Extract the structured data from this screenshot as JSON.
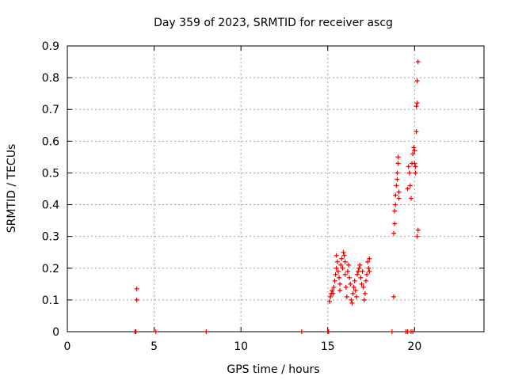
{
  "chart_data": {
    "type": "scatter",
    "title": "Day 359 of 2023, SRMTID for receiver ascg",
    "xlabel": "GPS time / hours",
    "ylabel": "SRMTID / TECUs",
    "xlim": [
      0,
      24
    ],
    "ylim": [
      0,
      0.9
    ],
    "xticks": [
      0,
      5,
      10,
      15,
      20
    ],
    "xtick_labels": [
      "0",
      "5",
      "10",
      "15",
      "20"
    ],
    "yticks": [
      0,
      0.1,
      0.2,
      0.3,
      0.4,
      0.5,
      0.6,
      0.7,
      0.8,
      0.9
    ],
    "ytick_labels": [
      "0",
      "0.1",
      "0.2",
      "0.3",
      "0.4",
      "0.5",
      "0.6",
      "0.7",
      "0.8",
      "0.9"
    ],
    "grid": true,
    "marker": "+",
    "color": "#e00000",
    "series": [
      {
        "name": "SRMTID",
        "points": [
          [
            3.9,
            0
          ],
          [
            3.95,
            0
          ],
          [
            4.0,
            0.135
          ],
          [
            4.0,
            0.1
          ],
          [
            5.1,
            0
          ],
          [
            8.0,
            0
          ],
          [
            13.5,
            0
          ],
          [
            15.0,
            0
          ],
          [
            15.05,
            0
          ],
          [
            15.1,
            0.095
          ],
          [
            15.15,
            0.11
          ],
          [
            15.2,
            0.12
          ],
          [
            15.25,
            0.13
          ],
          [
            15.3,
            0.12
          ],
          [
            15.35,
            0.14
          ],
          [
            15.4,
            0.16
          ],
          [
            15.45,
            0.18
          ],
          [
            15.5,
            0.2
          ],
          [
            15.5,
            0.24
          ],
          [
            15.55,
            0.22
          ],
          [
            15.6,
            0.19
          ],
          [
            15.65,
            0.17
          ],
          [
            15.7,
            0.15
          ],
          [
            15.7,
            0.13
          ],
          [
            15.75,
            0.21
          ],
          [
            15.8,
            0.23
          ],
          [
            15.85,
            0.2
          ],
          [
            15.9,
            0.25
          ],
          [
            15.95,
            0.24
          ],
          [
            16.0,
            0.22
          ],
          [
            16.0,
            0.18
          ],
          [
            16.05,
            0.14
          ],
          [
            16.1,
            0.11
          ],
          [
            16.15,
            0.19
          ],
          [
            16.2,
            0.21
          ],
          [
            16.25,
            0.17
          ],
          [
            16.3,
            0.15
          ],
          [
            16.35,
            0.1
          ],
          [
            16.4,
            0.09
          ],
          [
            16.45,
            0.12
          ],
          [
            16.5,
            0.14
          ],
          [
            16.55,
            0.16
          ],
          [
            16.6,
            0.13
          ],
          [
            16.65,
            0.11
          ],
          [
            16.7,
            0.18
          ],
          [
            16.75,
            0.19
          ],
          [
            16.8,
            0.2
          ],
          [
            16.85,
            0.21
          ],
          [
            16.9,
            0.17
          ],
          [
            16.95,
            0.15
          ],
          [
            17.0,
            0.19
          ],
          [
            17.05,
            0.14
          ],
          [
            17.1,
            0.1
          ],
          [
            17.15,
            0.12
          ],
          [
            17.2,
            0.16
          ],
          [
            17.25,
            0.18
          ],
          [
            17.3,
            0.22
          ],
          [
            17.35,
            0.2
          ],
          [
            17.4,
            0.23
          ],
          [
            17.4,
            0.19
          ],
          [
            18.7,
            0.0
          ],
          [
            18.8,
            0.11
          ],
          [
            18.8,
            0.31
          ],
          [
            18.85,
            0.34
          ],
          [
            18.85,
            0.38
          ],
          [
            18.9,
            0.4
          ],
          [
            18.9,
            0.43
          ],
          [
            18.95,
            0.46
          ],
          [
            19.0,
            0.48
          ],
          [
            19.0,
            0.5
          ],
          [
            19.05,
            0.53
          ],
          [
            19.05,
            0.55
          ],
          [
            19.1,
            0.44
          ],
          [
            19.1,
            0.42
          ],
          [
            19.5,
            0
          ],
          [
            19.6,
            0
          ],
          [
            19.6,
            0.45
          ],
          [
            19.65,
            0.52
          ],
          [
            19.7,
            0.5
          ],
          [
            19.75,
            0.46
          ],
          [
            19.8,
            0.42
          ],
          [
            19.85,
            0.53
          ],
          [
            19.9,
            0.56
          ],
          [
            19.95,
            0.58
          ],
          [
            20.0,
            0.57
          ],
          [
            20.0,
            0.53
          ],
          [
            20.05,
            0.52
          ],
          [
            20.05,
            0.5
          ],
          [
            20.1,
            0.63
          ],
          [
            20.1,
            0.71
          ],
          [
            20.15,
            0.72
          ],
          [
            20.15,
            0.79
          ],
          [
            20.2,
            0.85
          ],
          [
            20.15,
            0.3
          ],
          [
            20.2,
            0.32
          ],
          [
            19.8,
            0
          ],
          [
            19.9,
            0
          ]
        ]
      }
    ]
  }
}
